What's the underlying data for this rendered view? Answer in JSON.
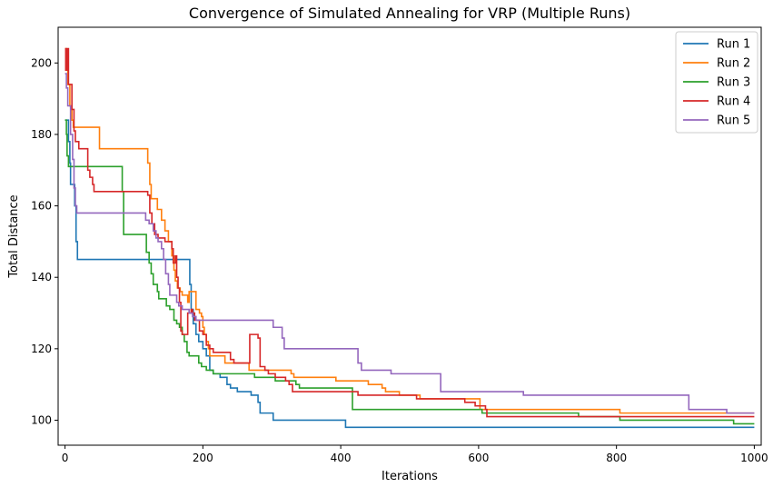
{
  "chart_data": {
    "type": "line",
    "title": "Convergence of Simulated Annealing for VRP (Multiple Runs)",
    "xlabel": "Iterations",
    "ylabel": "Total Distance",
    "xlim": [
      -10,
      1010
    ],
    "ylim": [
      93,
      210
    ],
    "xticks": [
      0,
      200,
      400,
      600,
      800,
      1000
    ],
    "yticks": [
      100,
      120,
      140,
      160,
      180,
      200
    ],
    "grid": false,
    "legend_position": "top-right",
    "step": true,
    "series": [
      {
        "name": "Run 1",
        "color": "#1f77b4",
        "points": [
          [
            0,
            184
          ],
          [
            3,
            184
          ],
          [
            5,
            178
          ],
          [
            7,
            172
          ],
          [
            8,
            166
          ],
          [
            12,
            166
          ],
          [
            14,
            160
          ],
          [
            16,
            150
          ],
          [
            18,
            145
          ],
          [
            130,
            145
          ],
          [
            178,
            145
          ],
          [
            181,
            138
          ],
          [
            183,
            131
          ],
          [
            186,
            127
          ],
          [
            190,
            124
          ],
          [
            194,
            122
          ],
          [
            200,
            120
          ],
          [
            205,
            118
          ],
          [
            210,
            114
          ],
          [
            215,
            113
          ],
          [
            225,
            112
          ],
          [
            235,
            110
          ],
          [
            240,
            109
          ],
          [
            250,
            108
          ],
          [
            270,
            107
          ],
          [
            280,
            105
          ],
          [
            283,
            102
          ],
          [
            300,
            102
          ],
          [
            302,
            100
          ],
          [
            405,
            100
          ],
          [
            407,
            98
          ],
          [
            1000,
            98
          ]
        ]
      },
      {
        "name": "Run 2",
        "color": "#ff7f0e",
        "points": [
          [
            0,
            204
          ],
          [
            2,
            200
          ],
          [
            4,
            194
          ],
          [
            7,
            188
          ],
          [
            10,
            184
          ],
          [
            12,
            182
          ],
          [
            48,
            182
          ],
          [
            50,
            176
          ],
          [
            117,
            176
          ],
          [
            120,
            172
          ],
          [
            123,
            166
          ],
          [
            125,
            162
          ],
          [
            132,
            162
          ],
          [
            134,
            159
          ],
          [
            140,
            156
          ],
          [
            145,
            153
          ],
          [
            150,
            150
          ],
          [
            155,
            146
          ],
          [
            158,
            142
          ],
          [
            160,
            139
          ],
          [
            163,
            137
          ],
          [
            167,
            136
          ],
          [
            170,
            135
          ],
          [
            178,
            133
          ],
          [
            180,
            136
          ],
          [
            190,
            131
          ],
          [
            195,
            130
          ],
          [
            198,
            129
          ],
          [
            200,
            126
          ],
          [
            202,
            124
          ],
          [
            205,
            122
          ],
          [
            208,
            120
          ],
          [
            210,
            118
          ],
          [
            225,
            118
          ],
          [
            232,
            116
          ],
          [
            265,
            116
          ],
          [
            267,
            114
          ],
          [
            320,
            114
          ],
          [
            328,
            113
          ],
          [
            332,
            112
          ],
          [
            390,
            112
          ],
          [
            393,
            111
          ],
          [
            430,
            111
          ],
          [
            440,
            110
          ],
          [
            460,
            109
          ],
          [
            465,
            108
          ],
          [
            480,
            108
          ],
          [
            485,
            107
          ],
          [
            510,
            107
          ],
          [
            515,
            106
          ],
          [
            600,
            106
          ],
          [
            602,
            103
          ],
          [
            800,
            103
          ],
          [
            805,
            102
          ],
          [
            1000,
            102
          ]
        ]
      },
      {
        "name": "Run 3",
        "color": "#2ca02c",
        "points": [
          [
            0,
            184
          ],
          [
            2,
            180
          ],
          [
            3,
            174
          ],
          [
            5,
            171
          ],
          [
            10,
            171
          ],
          [
            80,
            171
          ],
          [
            83,
            164
          ],
          [
            85,
            152
          ],
          [
            115,
            152
          ],
          [
            118,
            147
          ],
          [
            122,
            144
          ],
          [
            125,
            141
          ],
          [
            128,
            138
          ],
          [
            134,
            136
          ],
          [
            136,
            134
          ],
          [
            144,
            134
          ],
          [
            147,
            132
          ],
          [
            152,
            131
          ],
          [
            158,
            128
          ],
          [
            162,
            127
          ],
          [
            166,
            126
          ],
          [
            170,
            124
          ],
          [
            173,
            122
          ],
          [
            177,
            119
          ],
          [
            180,
            118
          ],
          [
            190,
            118
          ],
          [
            194,
            116
          ],
          [
            198,
            115
          ],
          [
            205,
            114
          ],
          [
            215,
            113
          ],
          [
            255,
            113
          ],
          [
            265,
            113
          ],
          [
            275,
            112
          ],
          [
            300,
            112
          ],
          [
            305,
            111
          ],
          [
            325,
            111
          ],
          [
            335,
            110
          ],
          [
            340,
            109
          ],
          [
            410,
            109
          ],
          [
            417,
            103
          ],
          [
            600,
            103
          ],
          [
            605,
            102
          ],
          [
            740,
            102
          ],
          [
            745,
            101
          ],
          [
            800,
            101
          ],
          [
            805,
            100
          ],
          [
            965,
            100
          ],
          [
            970,
            99
          ],
          [
            1000,
            99
          ]
        ]
      },
      {
        "name": "Run 4",
        "color": "#d62728",
        "points": [
          [
            0,
            204
          ],
          [
            1,
            198
          ],
          [
            3,
            204
          ],
          [
            5,
            194
          ],
          [
            8,
            194
          ],
          [
            10,
            187
          ],
          [
            13,
            181
          ],
          [
            15,
            178
          ],
          [
            20,
            176
          ],
          [
            30,
            176
          ],
          [
            33,
            170
          ],
          [
            36,
            168
          ],
          [
            40,
            166
          ],
          [
            42,
            164
          ],
          [
            118,
            164
          ],
          [
            120,
            163
          ],
          [
            123,
            158
          ],
          [
            126,
            155
          ],
          [
            130,
            152
          ],
          [
            135,
            151
          ],
          [
            142,
            151
          ],
          [
            145,
            150
          ],
          [
            151,
            150
          ],
          [
            155,
            148
          ],
          [
            157,
            144
          ],
          [
            160,
            146
          ],
          [
            162,
            140
          ],
          [
            164,
            137
          ],
          [
            166,
            133
          ],
          [
            168,
            125
          ],
          [
            170,
            124
          ],
          [
            175,
            124
          ],
          [
            178,
            130
          ],
          [
            183,
            131
          ],
          [
            185,
            130
          ],
          [
            188,
            128
          ],
          [
            195,
            125
          ],
          [
            200,
            124
          ],
          [
            205,
            121
          ],
          [
            210,
            120
          ],
          [
            215,
            119
          ],
          [
            235,
            119
          ],
          [
            240,
            117
          ],
          [
            245,
            116
          ],
          [
            265,
            116
          ],
          [
            268,
            124
          ],
          [
            280,
            123
          ],
          [
            283,
            115
          ],
          [
            290,
            114
          ],
          [
            295,
            113
          ],
          [
            305,
            112
          ],
          [
            320,
            111
          ],
          [
            325,
            110
          ],
          [
            330,
            108
          ],
          [
            420,
            108
          ],
          [
            425,
            107
          ],
          [
            500,
            107
          ],
          [
            510,
            106
          ],
          [
            570,
            106
          ],
          [
            580,
            105
          ],
          [
            595,
            104
          ],
          [
            610,
            103
          ],
          [
            612,
            101
          ],
          [
            1000,
            101
          ]
        ]
      },
      {
        "name": "Run 5",
        "color": "#9467bd",
        "points": [
          [
            0,
            197
          ],
          [
            2,
            193
          ],
          [
            4,
            188
          ],
          [
            8,
            180
          ],
          [
            11,
            173
          ],
          [
            13,
            165
          ],
          [
            15,
            160
          ],
          [
            17,
            158
          ],
          [
            110,
            158
          ],
          [
            117,
            156
          ],
          [
            122,
            155
          ],
          [
            128,
            153
          ],
          [
            132,
            151
          ],
          [
            135,
            150
          ],
          [
            140,
            148
          ],
          [
            143,
            145
          ],
          [
            146,
            141
          ],
          [
            150,
            138
          ],
          [
            152,
            135
          ],
          [
            160,
            135
          ],
          [
            162,
            133
          ],
          [
            165,
            132
          ],
          [
            170,
            131
          ],
          [
            180,
            130
          ],
          [
            185,
            129
          ],
          [
            190,
            128
          ],
          [
            210,
            128
          ],
          [
            228,
            128
          ],
          [
            300,
            128
          ],
          [
            302,
            126
          ],
          [
            313,
            126
          ],
          [
            315,
            123
          ],
          [
            318,
            120
          ],
          [
            320,
            120
          ],
          [
            420,
            120
          ],
          [
            425,
            116
          ],
          [
            430,
            114
          ],
          [
            470,
            114
          ],
          [
            473,
            113
          ],
          [
            540,
            113
          ],
          [
            545,
            108
          ],
          [
            600,
            108
          ],
          [
            610,
            108
          ],
          [
            660,
            108
          ],
          [
            665,
            107
          ],
          [
            900,
            107
          ],
          [
            905,
            103
          ],
          [
            960,
            102
          ],
          [
            1000,
            102
          ]
        ]
      }
    ]
  }
}
